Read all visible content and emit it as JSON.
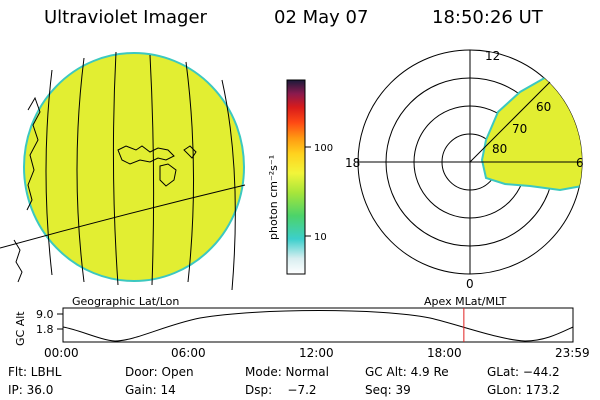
{
  "header": {
    "instrument": "Ultraviolet Imager",
    "date": "02 May 07",
    "time": "18:50:26 UT"
  },
  "colorbar": {
    "unit_label": "photon cm⁻²s⁻¹",
    "ticks": [
      "100",
      "10"
    ]
  },
  "panels": {
    "left_label": "Geographic Lat/Lon",
    "right_label": "Apex MLat/MLT"
  },
  "polar": {
    "mlt_labels": {
      "top": "12",
      "left": "18",
      "right": "6",
      "bottom": "0"
    },
    "lat_labels": [
      "60",
      "70",
      "80"
    ]
  },
  "timeline": {
    "ylabel": "GC Alt",
    "yticks": [
      "9.0",
      "1.8"
    ],
    "xticks": [
      "00:00",
      "06:00",
      "12:00",
      "18:00",
      "23:59"
    ],
    "current_time_fraction": 0.786
  },
  "status": {
    "row1": {
      "flt": "Flt: LBHL",
      "door": "Door: Open",
      "mode": "Mode: Normal",
      "gc_alt": "GC Alt: 4.9 Re",
      "glat": "GLat: −44.2"
    },
    "row2": {
      "ip": "IP: 36.0",
      "gain": "Gain: 14",
      "dsp": "Dsp:    −7.2",
      "seq": "Seq: 39",
      "glon": "GLon: 173.2"
    }
  }
}
